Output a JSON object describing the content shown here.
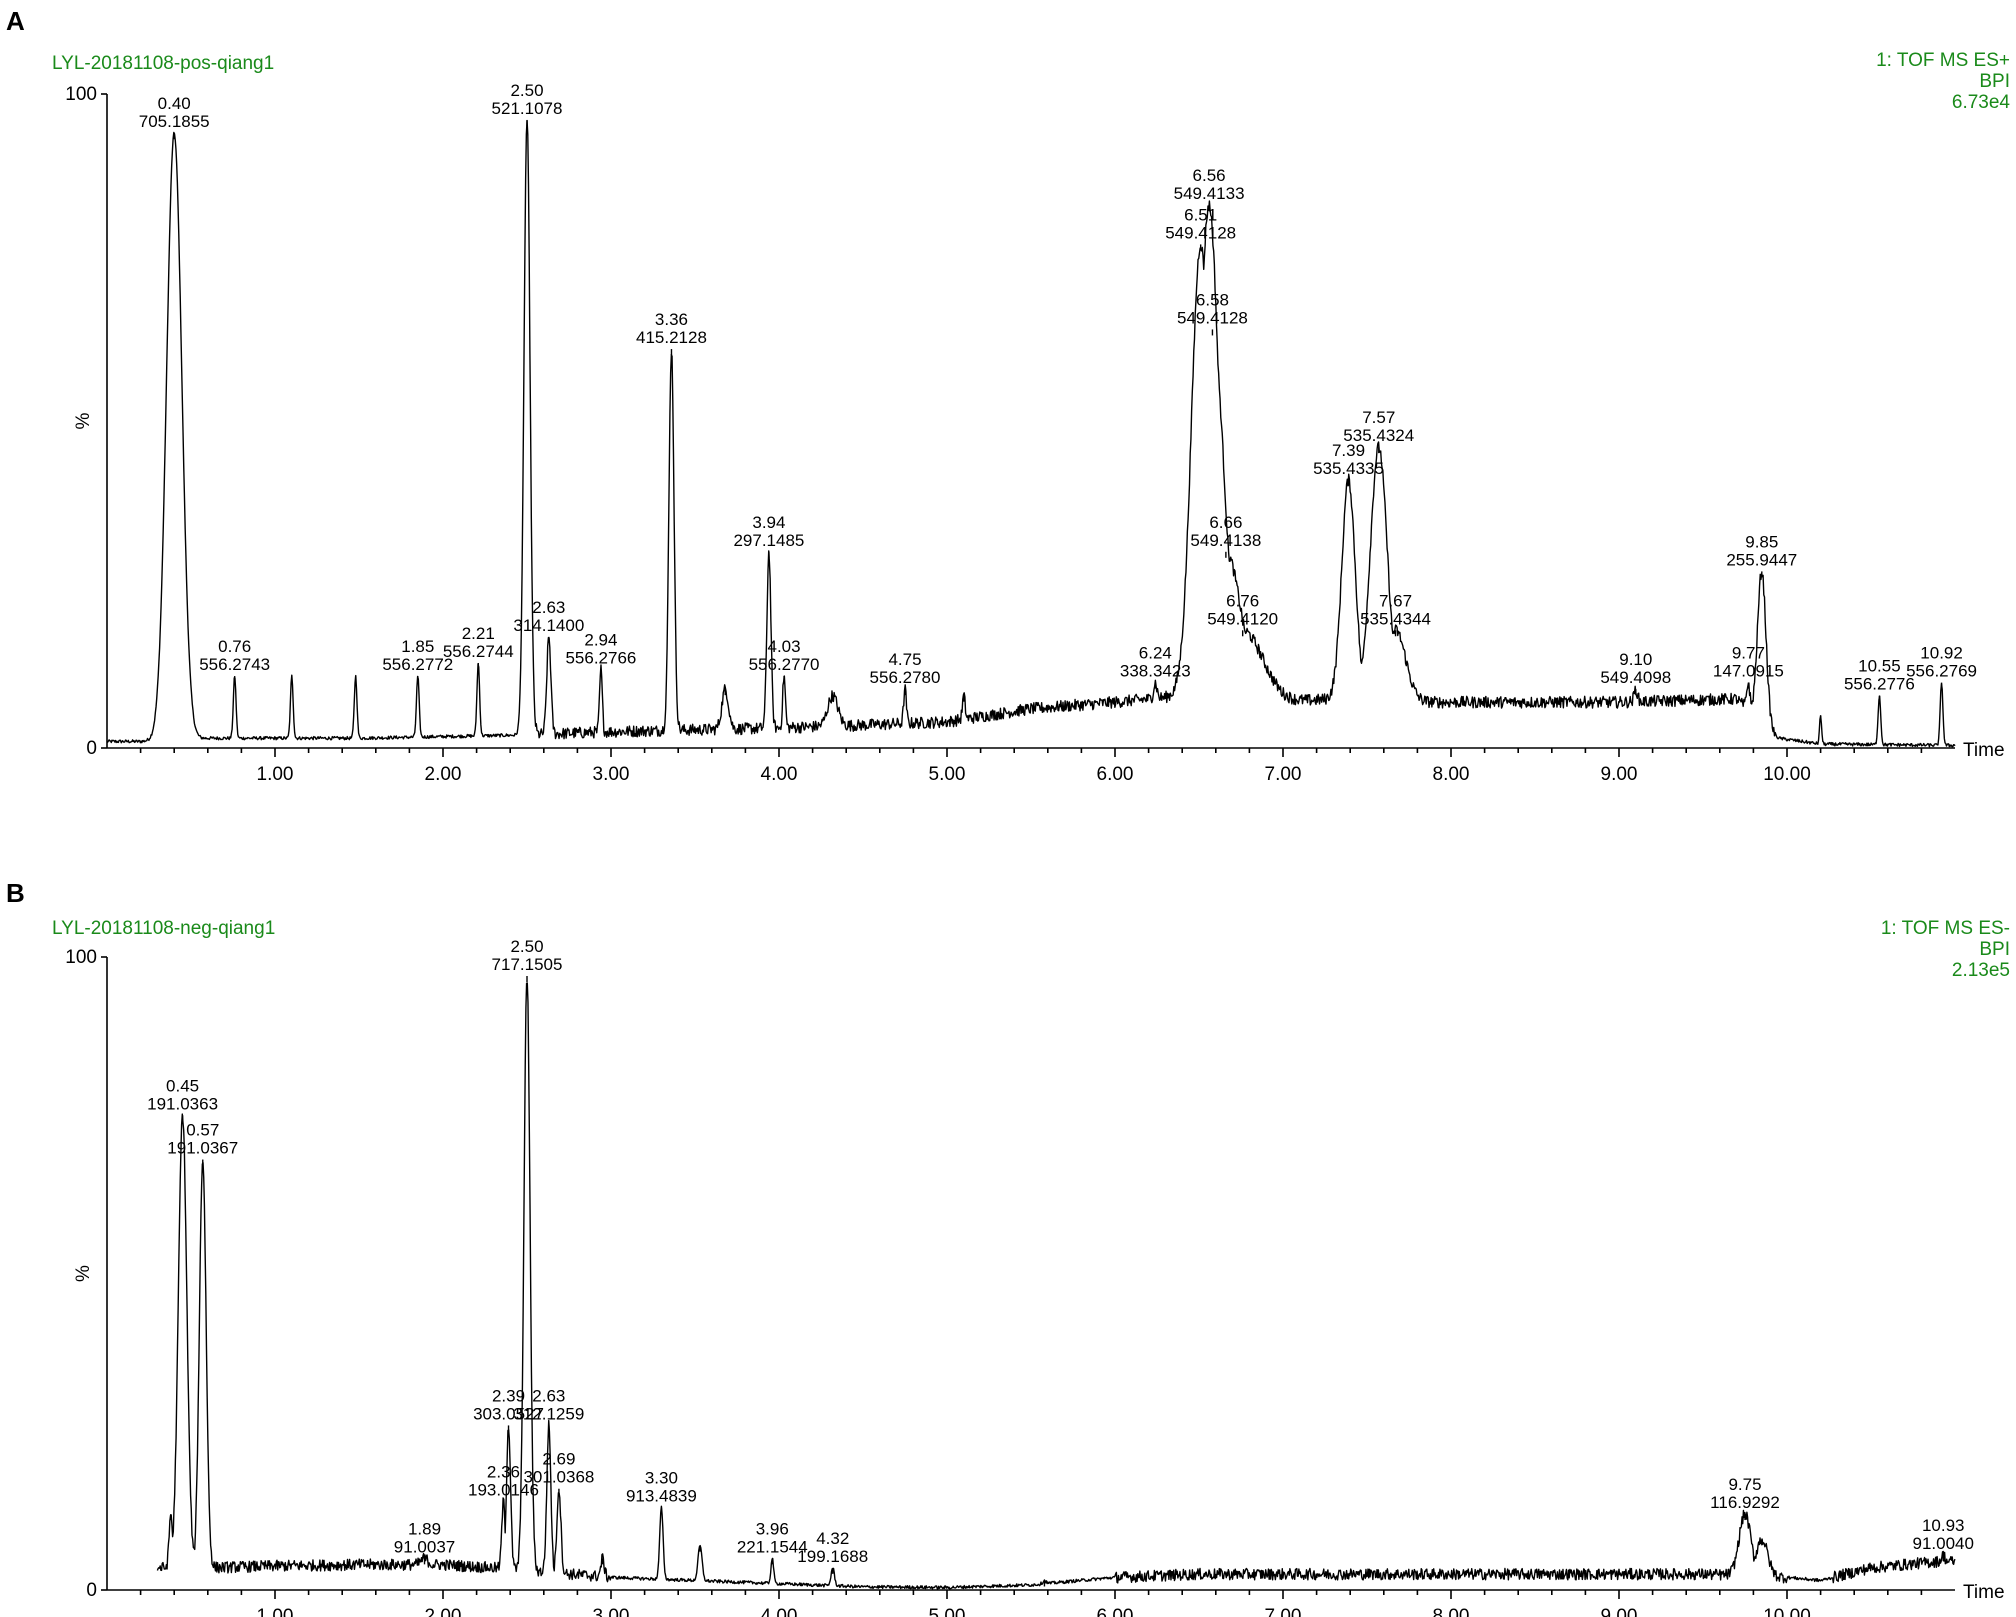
{
  "chart_data": [
    {
      "panel": "A",
      "type": "line",
      "sample": "LYL-20181108-pos-qiang1",
      "info": [
        "1: TOF MS ES+",
        "BPI",
        "6.73e4"
      ],
      "ylabel": "%",
      "xlabel": "Time",
      "xlim": [
        0.0,
        11.0
      ],
      "ylim": [
        0,
        100
      ],
      "y_ticks": [
        "0",
        "100"
      ],
      "x_ticks": [
        "1.00",
        "2.00",
        "3.00",
        "4.00",
        "5.00",
        "6.00",
        "7.00",
        "8.00",
        "9.00",
        "10.00"
      ],
      "baseline": [
        [
          0,
          1
        ],
        [
          0.2,
          1
        ],
        [
          0.6,
          1.5
        ],
        [
          1.5,
          1.5
        ],
        [
          2.5,
          2
        ],
        [
          3.0,
          2.5
        ],
        [
          3.9,
          3
        ],
        [
          4.5,
          3.5
        ],
        [
          5.0,
          4
        ],
        [
          5.5,
          6
        ],
        [
          6.0,
          7
        ],
        [
          6.4,
          8
        ],
        [
          7.0,
          7
        ],
        [
          7.3,
          7.5
        ],
        [
          7.9,
          7
        ],
        [
          8.5,
          7
        ],
        [
          9.0,
          7
        ],
        [
          9.7,
          7.5
        ],
        [
          9.95,
          1.5
        ],
        [
          10.2,
          0.6
        ],
        [
          11.0,
          0.4
        ]
      ],
      "peaks": [
        {
          "rt": "0.40",
          "mz": "705.1855",
          "x": 0.4,
          "y": 94,
          "w": 0.045,
          "label": true
        },
        {
          "rt": "0.76",
          "mz": "556.2743",
          "x": 0.76,
          "y": 11,
          "w": 0.008,
          "label": true
        },
        {
          "rt": "",
          "mz": "",
          "x": 1.1,
          "y": 11,
          "w": 0.008,
          "label": false
        },
        {
          "rt": "",
          "mz": "",
          "x": 1.48,
          "y": 11,
          "w": 0.008,
          "label": false
        },
        {
          "rt": "1.85",
          "mz": "556.2772",
          "x": 1.85,
          "y": 11,
          "w": 0.008,
          "label": true
        },
        {
          "rt": "2.21",
          "mz": "556.2744",
          "x": 2.21,
          "y": 13,
          "w": 0.008,
          "label": true
        },
        {
          "rt": "2.50",
          "mz": "521.1078",
          "x": 2.5,
          "y": 96,
          "w": 0.018,
          "label": true
        },
        {
          "rt": "2.63",
          "mz": "314.1400",
          "x": 2.63,
          "y": 17,
          "w": 0.012,
          "label": true
        },
        {
          "rt": "2.94",
          "mz": "556.2766",
          "x": 2.94,
          "y": 12,
          "w": 0.008,
          "label": true
        },
        {
          "rt": "3.36",
          "mz": "415.2128",
          "x": 3.36,
          "y": 61,
          "w": 0.015,
          "label": true
        },
        {
          "rt": "",
          "mz": "",
          "x": 3.68,
          "y": 9,
          "w": 0.02,
          "label": false
        },
        {
          "rt": "3.94",
          "mz": "297.1485",
          "x": 3.94,
          "y": 30,
          "w": 0.012,
          "label": true
        },
        {
          "rt": "4.03",
          "mz": "556.2770",
          "x": 4.03,
          "y": 11,
          "w": 0.008,
          "label": true
        },
        {
          "rt": "",
          "mz": "",
          "x": 4.32,
          "y": 8,
          "w": 0.03,
          "label": false
        },
        {
          "rt": "4.75",
          "mz": "556.2780",
          "x": 4.75,
          "y": 9,
          "w": 0.008,
          "label": true
        },
        {
          "rt": "",
          "mz": "",
          "x": 5.1,
          "y": 8,
          "w": 0.008,
          "label": false
        },
        {
          "rt": "6.24",
          "mz": "338.3423",
          "x": 6.24,
          "y": 10,
          "w": 0.01,
          "label": true
        },
        {
          "rt": "6.51",
          "mz": "549.4128",
          "x": 6.51,
          "y": 77,
          "w": 0.055,
          "label": true
        },
        {
          "rt": "6.56",
          "mz": "549.4133",
          "x": 6.56,
          "y": 83,
          "w": 0.06,
          "label": true
        },
        {
          "rt": "6.58",
          "mz": "549.4128",
          "x": 6.58,
          "y": 64,
          "w": 0.07,
          "label": true
        },
        {
          "rt": "6.66",
          "mz": "549.4138",
          "x": 6.66,
          "y": 30,
          "w": 0.09,
          "label": true
        },
        {
          "rt": "6.76",
          "mz": "549.4120",
          "x": 6.76,
          "y": 18,
          "w": 0.12,
          "label": true
        },
        {
          "rt": "7.39",
          "mz": "535.4335",
          "x": 7.39,
          "y": 41,
          "w": 0.04,
          "label": true
        },
        {
          "rt": "7.57",
          "mz": "535.4324",
          "x": 7.57,
          "y": 46,
          "w": 0.05,
          "label": true
        },
        {
          "rt": "7.67",
          "mz": "535.4344",
          "x": 7.67,
          "y": 18,
          "w": 0.06,
          "label": true
        },
        {
          "rt": "9.10",
          "mz": "549.4098",
          "x": 9.1,
          "y": 9,
          "w": 0.01,
          "label": true
        },
        {
          "rt": "9.77",
          "mz": "147.0915",
          "x": 9.77,
          "y": 10,
          "w": 0.01,
          "label": true
        },
        {
          "rt": "9.85",
          "mz": "255.9447",
          "x": 9.85,
          "y": 27,
          "w": 0.025,
          "label": true
        },
        {
          "rt": "",
          "mz": "",
          "x": 10.2,
          "y": 5,
          "w": 0.006,
          "label": false
        },
        {
          "rt": "10.55",
          "mz": "556.2776",
          "x": 10.55,
          "y": 8,
          "w": 0.008,
          "label": true
        },
        {
          "rt": "10.92",
          "mz": "556.2769",
          "x": 10.92,
          "y": 10,
          "w": 0.008,
          "label": true
        }
      ]
    },
    {
      "panel": "B",
      "type": "line",
      "sample": "LYL-20181108-neg-qiang1",
      "info": [
        "1: TOF MS ES-",
        "BPI",
        "2.13e5"
      ],
      "ylabel": "%",
      "xlabel": "Time",
      "xlim": [
        0.0,
        11.0
      ],
      "ylim": [
        0,
        100
      ],
      "y_ticks": [
        "0",
        "100"
      ],
      "x_ticks": [
        "1.00",
        "2.00",
        "3.00",
        "4.00",
        "5.00",
        "6.00",
        "7.00",
        "8.00",
        "9.00",
        "10.00"
      ],
      "baseline": [
        [
          0.3,
          3.5
        ],
        [
          0.6,
          3.5
        ],
        [
          1.0,
          3.8
        ],
        [
          1.5,
          4
        ],
        [
          2.0,
          4
        ],
        [
          2.3,
          3.5
        ],
        [
          3.0,
          2
        ],
        [
          3.5,
          1.5
        ],
        [
          4.0,
          1
        ],
        [
          4.5,
          0.5
        ],
        [
          5.0,
          0.4
        ],
        [
          5.5,
          0.8
        ],
        [
          6.0,
          2
        ],
        [
          6.5,
          2.5
        ],
        [
          7.0,
          2.5
        ],
        [
          8.0,
          2.5
        ],
        [
          9.0,
          2.5
        ],
        [
          9.5,
          2.5
        ],
        [
          10.0,
          2
        ],
        [
          10.2,
          1.5
        ],
        [
          10.5,
          3.5
        ],
        [
          10.9,
          4.5
        ],
        [
          11.0,
          4.5
        ]
      ],
      "peaks": [
        {
          "rt": "",
          "mz": "",
          "x": 0.38,
          "y": 12,
          "w": 0.01,
          "label": false
        },
        {
          "rt": "0.45",
          "mz": "191.0363",
          "x": 0.45,
          "y": 75,
          "w": 0.025,
          "label": true
        },
        {
          "rt": "0.57",
          "mz": "191.0367",
          "x": 0.57,
          "y": 68,
          "w": 0.02,
          "label": true
        },
        {
          "rt": "1.89",
          "mz": "91.0037",
          "x": 1.89,
          "y": 5,
          "w": 0.02,
          "label": true
        },
        {
          "rt": "2.36",
          "mz": "193.0146",
          "x": 2.36,
          "y": 14,
          "w": 0.01,
          "label": true
        },
        {
          "rt": "2.39",
          "mz": "303.0527",
          "x": 2.39,
          "y": 26,
          "w": 0.012,
          "label": true
        },
        {
          "rt": "2.50",
          "mz": "717.1505",
          "x": 2.5,
          "y": 97,
          "w": 0.018,
          "label": true
        },
        {
          "rt": "2.63",
          "mz": "312.1259",
          "x": 2.63,
          "y": 26,
          "w": 0.012,
          "label": true
        },
        {
          "rt": "2.69",
          "mz": "301.0368",
          "x": 2.69,
          "y": 16,
          "w": 0.012,
          "label": true
        },
        {
          "rt": "",
          "mz": "",
          "x": 2.95,
          "y": 5,
          "w": 0.01,
          "label": false
        },
        {
          "rt": "3.30",
          "mz": "913.4839",
          "x": 3.3,
          "y": 13,
          "w": 0.01,
          "label": true
        },
        {
          "rt": "",
          "mz": "",
          "x": 3.53,
          "y": 7,
          "w": 0.012,
          "label": false
        },
        {
          "rt": "3.96",
          "mz": "221.1544",
          "x": 3.96,
          "y": 5,
          "w": 0.008,
          "label": true
        },
        {
          "rt": "4.32",
          "mz": "199.1688",
          "x": 4.32,
          "y": 3.5,
          "w": 0.01,
          "label": true
        },
        {
          "rt": "",
          "mz": "",
          "x": 5.58,
          "y": 1.5,
          "w": 0.01,
          "label": false
        },
        {
          "rt": "9.75",
          "mz": "116.9292",
          "x": 9.75,
          "y": 12,
          "w": 0.035,
          "label": true
        },
        {
          "rt": "",
          "mz": "",
          "x": 9.85,
          "y": 8,
          "w": 0.035,
          "label": false
        },
        {
          "rt": "10.93",
          "mz": "91.0040",
          "x": 10.93,
          "y": 5.5,
          "w": 0.01,
          "label": true
        }
      ]
    }
  ]
}
